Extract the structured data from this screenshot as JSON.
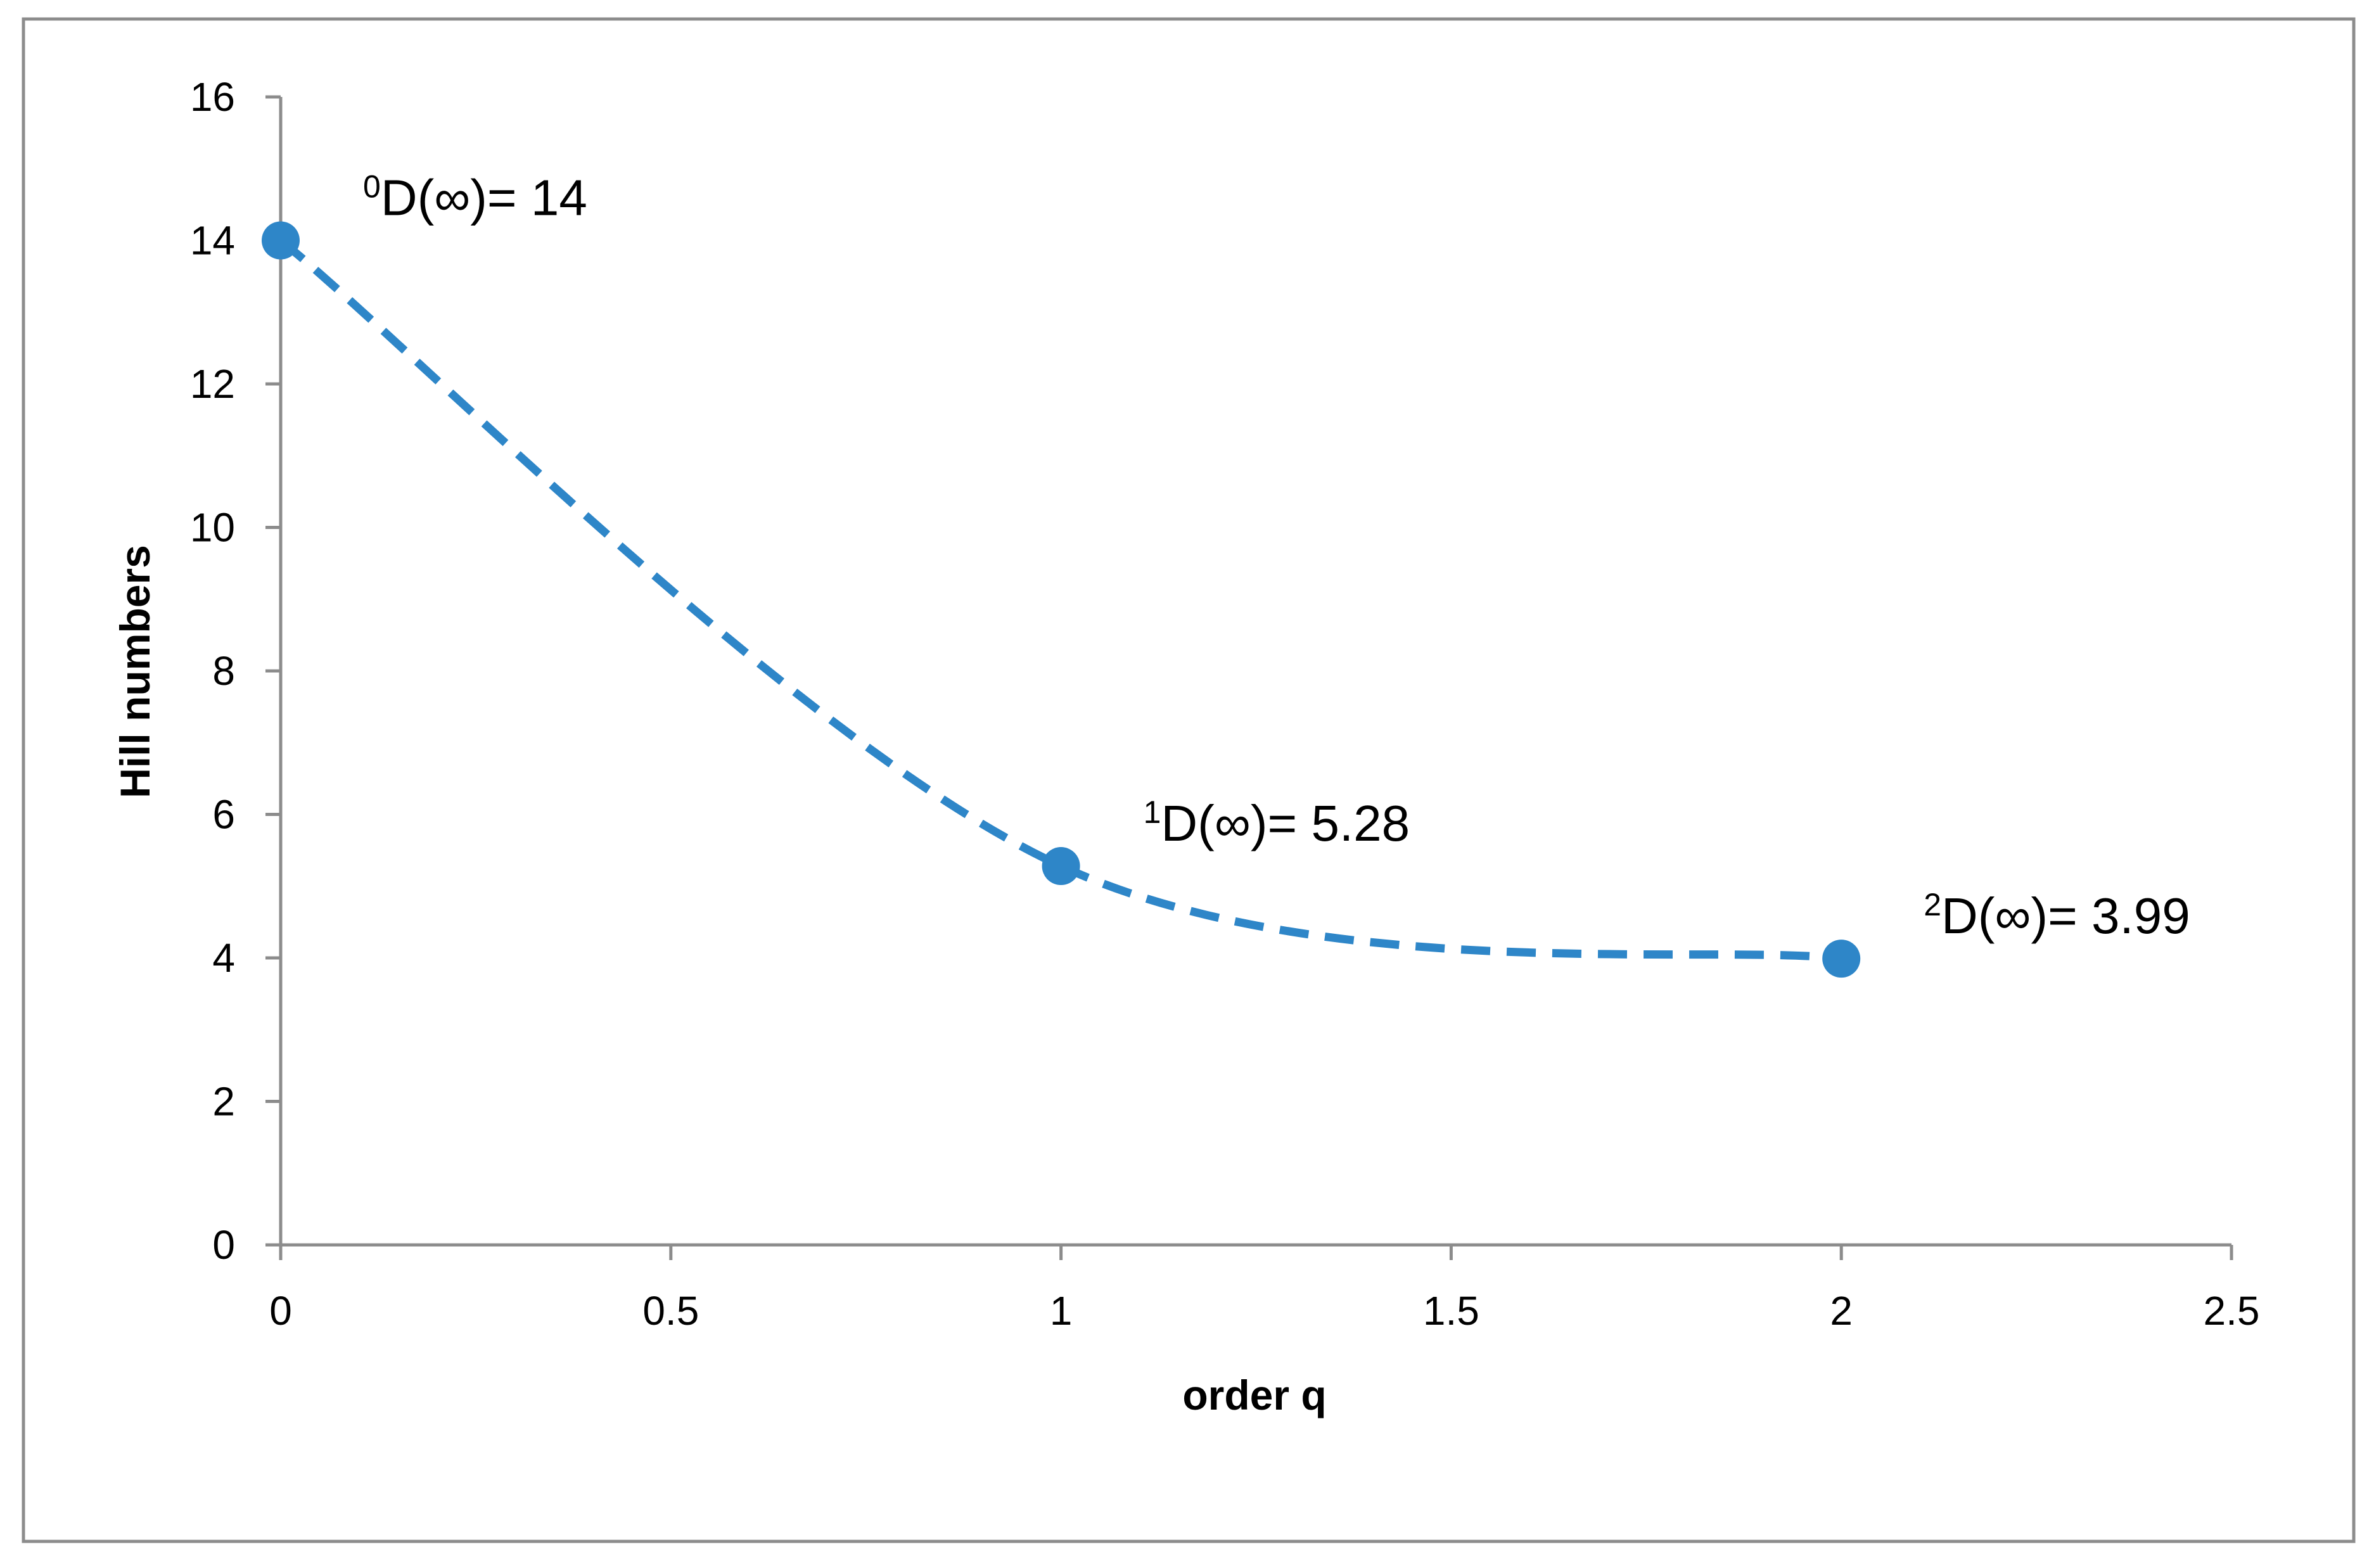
{
  "chart_data": {
    "type": "scatter",
    "title": "",
    "xlabel": "order q",
    "ylabel": "Hill numbers",
    "xlim": [
      0,
      2.5
    ],
    "ylim": [
      0,
      16
    ],
    "xticks": [
      "0",
      "0.5",
      "1",
      "1.5",
      "2",
      "2.5"
    ],
    "yticks": [
      "0",
      "2",
      "4",
      "6",
      "8",
      "10",
      "12",
      "14",
      "16"
    ],
    "grid": false,
    "line_style": "dashed smooth",
    "series": [
      {
        "x": [
          0,
          1,
          2
        ],
        "y": [
          14,
          5.28,
          3.99
        ],
        "color": "#2e86c8"
      }
    ],
    "annotations": [
      {
        "sup": "0",
        "text": "D(∞)= 14",
        "x": 0,
        "y": 14
      },
      {
        "sup": "1",
        "text": "D(∞)= 5.28",
        "x": 1,
        "y": 5.28
      },
      {
        "sup": "2",
        "text": "D(∞)= 3.99",
        "x": 2,
        "y": 3.99
      }
    ]
  }
}
